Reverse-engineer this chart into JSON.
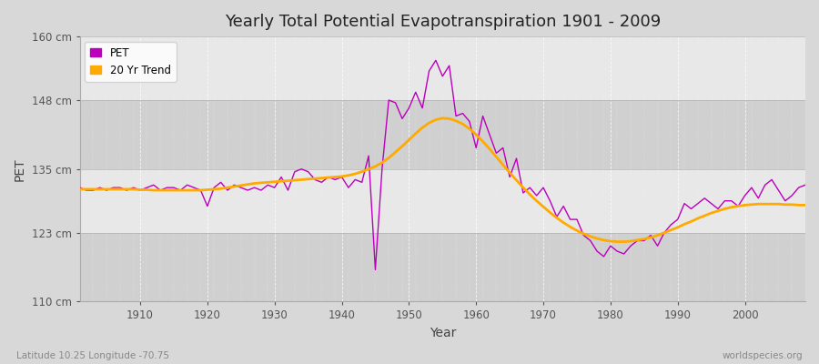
{
  "title": "Yearly Total Potential Evapotranspiration 1901 - 2009",
  "xlabel": "Year",
  "ylabel": "PET",
  "subtitle_left": "Latitude 10.25 Longitude -70.75",
  "subtitle_right": "worldspecies.org",
  "ylim": [
    110,
    160
  ],
  "yticks": [
    110,
    123,
    135,
    148,
    160
  ],
  "ytick_labels": [
    "110 cm",
    "123 cm",
    "135 cm",
    "148 cm",
    "160 cm"
  ],
  "xlim": [
    1901,
    2009
  ],
  "xticks": [
    1910,
    1920,
    1930,
    1940,
    1950,
    1960,
    1970,
    1980,
    1990,
    2000
  ],
  "pet_color": "#bb00bb",
  "trend_color": "#ffaa00",
  "background_color": "#d8d8d8",
  "band_light": "#e8e8e8",
  "band_dark": "#d0d0d0",
  "pet_linewidth": 1.0,
  "trend_linewidth": 2.0,
  "legend_labels": [
    "PET",
    "20 Yr Trend"
  ],
  "years": [
    1901,
    1902,
    1903,
    1904,
    1905,
    1906,
    1907,
    1908,
    1909,
    1910,
    1911,
    1912,
    1913,
    1914,
    1915,
    1916,
    1917,
    1918,
    1919,
    1920,
    1921,
    1922,
    1923,
    1924,
    1925,
    1926,
    1927,
    1928,
    1929,
    1930,
    1931,
    1932,
    1933,
    1934,
    1935,
    1936,
    1937,
    1938,
    1939,
    1940,
    1941,
    1942,
    1943,
    1944,
    1945,
    1946,
    1947,
    1948,
    1949,
    1950,
    1951,
    1952,
    1953,
    1954,
    1955,
    1956,
    1957,
    1958,
    1959,
    1960,
    1961,
    1962,
    1963,
    1964,
    1965,
    1966,
    1967,
    1968,
    1969,
    1970,
    1971,
    1972,
    1973,
    1974,
    1975,
    1976,
    1977,
    1978,
    1979,
    1980,
    1981,
    1982,
    1983,
    1984,
    1985,
    1986,
    1987,
    1988,
    1989,
    1990,
    1991,
    1992,
    1993,
    1994,
    1995,
    1996,
    1997,
    1998,
    1999,
    2000,
    2001,
    2002,
    2003,
    2004,
    2005,
    2006,
    2007,
    2008,
    2009
  ],
  "pet_values": [
    131.5,
    131.0,
    131.0,
    131.5,
    131.0,
    131.5,
    131.5,
    131.0,
    131.5,
    131.0,
    131.5,
    132.0,
    131.0,
    131.5,
    131.5,
    131.0,
    132.0,
    131.5,
    131.0,
    128.0,
    131.5,
    132.5,
    131.0,
    132.0,
    131.5,
    131.0,
    131.5,
    131.0,
    132.0,
    131.5,
    133.5,
    131.0,
    134.5,
    135.0,
    134.5,
    133.0,
    132.5,
    133.5,
    133.0,
    133.5,
    131.5,
    133.0,
    132.5,
    137.5,
    116.0,
    135.0,
    148.0,
    147.5,
    144.5,
    146.5,
    149.5,
    146.5,
    153.5,
    155.5,
    152.5,
    154.5,
    145.0,
    145.5,
    144.0,
    139.0,
    145.0,
    141.5,
    138.0,
    139.0,
    133.5,
    137.0,
    130.5,
    131.5,
    130.0,
    131.5,
    129.0,
    126.0,
    128.0,
    125.5,
    125.5,
    122.5,
    121.5,
    119.5,
    118.5,
    120.5,
    119.5,
    119.0,
    120.5,
    121.5,
    121.5,
    122.5,
    120.5,
    123.0,
    124.5,
    125.5,
    128.5,
    127.5,
    128.5,
    129.5,
    128.5,
    127.5,
    129.0,
    129.0,
    128.0,
    130.0,
    131.5,
    129.5,
    132.0,
    133.0,
    131.0,
    129.0,
    130.0,
    131.5,
    132.0
  ],
  "trend_values": [
    131.2,
    131.2,
    131.2,
    131.2,
    131.2,
    131.2,
    131.2,
    131.2,
    131.2,
    131.1,
    131.1,
    131.0,
    131.0,
    131.0,
    131.0,
    131.0,
    131.0,
    131.0,
    131.0,
    131.1,
    131.2,
    131.3,
    131.5,
    131.7,
    131.9,
    132.1,
    132.3,
    132.4,
    132.5,
    132.6,
    132.7,
    132.8,
    132.9,
    133.0,
    133.1,
    133.2,
    133.3,
    133.4,
    133.5,
    133.6,
    133.8,
    134.1,
    134.5,
    135.0,
    135.5,
    136.2,
    137.1,
    138.2,
    139.3,
    140.5,
    141.7,
    142.8,
    143.7,
    144.3,
    144.6,
    144.5,
    144.1,
    143.5,
    142.6,
    141.5,
    140.2,
    138.8,
    137.3,
    135.8,
    134.3,
    132.9,
    131.5,
    130.2,
    129.0,
    127.9,
    126.8,
    125.8,
    124.9,
    124.1,
    123.4,
    122.8,
    122.3,
    121.9,
    121.6,
    121.4,
    121.3,
    121.3,
    121.4,
    121.6,
    121.8,
    122.1,
    122.5,
    123.0,
    123.5,
    124.0,
    124.6,
    125.1,
    125.7,
    126.2,
    126.7,
    127.1,
    127.5,
    127.8,
    128.0,
    128.2,
    128.3,
    128.4,
    128.4,
    128.4,
    128.4,
    128.3,
    128.3,
    128.2,
    128.2
  ]
}
